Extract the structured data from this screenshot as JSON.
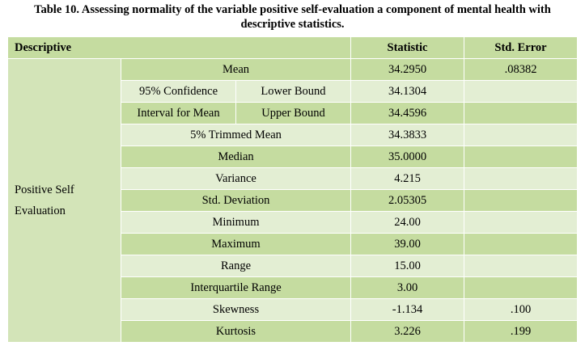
{
  "caption": {
    "line1": "Table 10. Assessing normality of the variable positive self-evaluation a component of mental health with",
    "line2": "descriptive statistics."
  },
  "header": {
    "descriptive": "Descriptive",
    "statistic": "Statistic",
    "std_error": "Std. Error"
  },
  "variable": {
    "line1": "Positive Self",
    "line2": "Evaluation"
  },
  "rows": {
    "mean": {
      "label": "Mean",
      "statistic": "34.2950",
      "std_error": ".08382"
    },
    "ci_label_line1": "95% Confidence",
    "ci_label_line2": "Interval for Mean",
    "ci_lower": {
      "label": "Lower Bound",
      "statistic": "34.1304",
      "std_error": ""
    },
    "ci_upper": {
      "label": "Upper Bound",
      "statistic": "34.4596",
      "std_error": ""
    },
    "trimmed_mean": {
      "label": "5% Trimmed Mean",
      "statistic": "34.3833",
      "std_error": ""
    },
    "median": {
      "label": "Median",
      "statistic": "35.0000",
      "std_error": ""
    },
    "variance": {
      "label": "Variance",
      "statistic": "4.215",
      "std_error": ""
    },
    "std_deviation": {
      "label": "Std. Deviation",
      "statistic": "2.05305",
      "std_error": ""
    },
    "minimum": {
      "label": "Minimum",
      "statistic": "24.00",
      "std_error": ""
    },
    "maximum": {
      "label": "Maximum",
      "statistic": "39.00",
      "std_error": ""
    },
    "range": {
      "label": "Range",
      "statistic": "15.00",
      "std_error": ""
    },
    "iqr": {
      "label": "Interquartile Range",
      "statistic": "3.00",
      "std_error": ""
    },
    "skewness": {
      "label": "Skewness",
      "statistic": "-1.134",
      "std_error": ".100"
    },
    "kurtosis": {
      "label": "Kurtosis",
      "statistic": "3.226",
      "std_error": ".199"
    }
  },
  "colors": {
    "header_bg": "#c5dca0",
    "row_dark": "#c5dca0",
    "row_light": "#e3eed3"
  }
}
